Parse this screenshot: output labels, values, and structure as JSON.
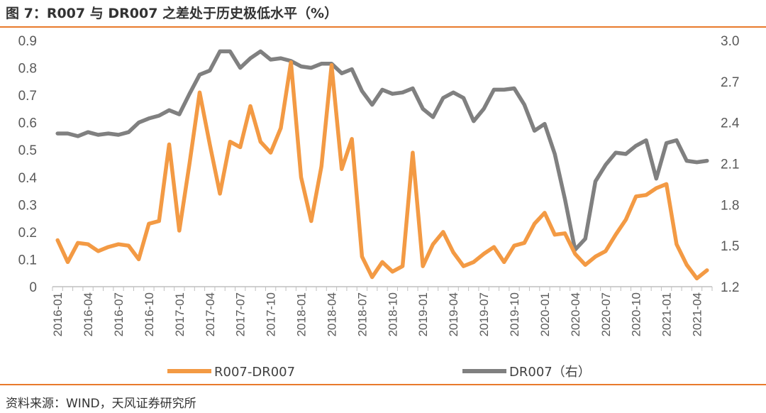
{
  "figure": {
    "title": "图 7：R007 与 DR007 之差处于历史极低水平（%）",
    "source": "资料来源：WIND，天风证券研究所"
  },
  "colors": {
    "r_minus_dr": "#f39a44",
    "dr007": "#808080",
    "rule": "#e87a2c",
    "axis": "#bfbfbf",
    "text": "#595959"
  },
  "chart_data": {
    "type": "line",
    "title": "图 7：R007 与 DR007 之差处于历史极低水平（%）",
    "xlabel": "",
    "ylabel": "",
    "x": [
      "2016-01",
      "2016-02",
      "2016-03",
      "2016-04",
      "2016-05",
      "2016-06",
      "2016-07",
      "2016-08",
      "2016-09",
      "2016-10",
      "2016-11",
      "2016-12",
      "2017-01",
      "2017-02",
      "2017-03",
      "2017-04",
      "2017-05",
      "2017-06",
      "2017-07",
      "2017-08",
      "2017-09",
      "2017-10",
      "2017-11",
      "2017-12",
      "2018-01",
      "2018-02",
      "2018-03",
      "2018-04",
      "2018-05",
      "2018-06",
      "2018-07",
      "2018-08",
      "2018-09",
      "2018-10",
      "2018-11",
      "2018-12",
      "2019-01",
      "2019-02",
      "2019-03",
      "2019-04",
      "2019-05",
      "2019-06",
      "2019-07",
      "2019-08",
      "2019-09",
      "2019-10",
      "2019-11",
      "2019-12",
      "2020-01",
      "2020-02",
      "2020-03",
      "2020-04",
      "2020-05",
      "2020-06",
      "2020-07",
      "2020-08",
      "2020-09",
      "2020-10",
      "2020-11",
      "2020-12",
      "2021-01",
      "2021-02",
      "2021-03",
      "2021-04",
      "2021-05"
    ],
    "x_tick_labels": [
      "2016-01",
      "2016-04",
      "2016-07",
      "2016-10",
      "2017-01",
      "2017-04",
      "2017-07",
      "2017-10",
      "2018-01",
      "2018-04",
      "2018-07",
      "2018-10",
      "2019-01",
      "2019-04",
      "2019-07",
      "2019-10",
      "2020-01",
      "2020-04",
      "2020-07",
      "2020-10",
      "2021-01",
      "2021-04"
    ],
    "left_axis": {
      "ylim": [
        0,
        0.9
      ],
      "ticks": [
        "0",
        "0.1",
        "0.2",
        "0.3",
        "0.4",
        "0.5",
        "0.6",
        "0.7",
        "0.8",
        "0.9"
      ],
      "tick_values": [
        0,
        0.1,
        0.2,
        0.3,
        0.4,
        0.5,
        0.6,
        0.7,
        0.8,
        0.9
      ]
    },
    "right_axis": {
      "ylim": [
        1.2,
        3.0
      ],
      "ticks": [
        "1.2",
        "1.5",
        "1.8",
        "2.1",
        "2.4",
        "2.7",
        "3.0"
      ],
      "tick_values": [
        1.2,
        1.5,
        1.8,
        2.1,
        2.4,
        2.7,
        3.0
      ]
    },
    "series": [
      {
        "name": "R007-DR007",
        "axis": "left",
        "values": [
          0.17,
          0.09,
          0.16,
          0.155,
          0.13,
          0.145,
          0.155,
          0.15,
          0.1,
          0.23,
          0.24,
          0.52,
          0.205,
          0.45,
          0.71,
          0.52,
          0.34,
          0.53,
          0.51,
          0.66,
          0.53,
          0.49,
          0.58,
          0.82,
          0.4,
          0.24,
          0.44,
          0.81,
          0.43,
          0.54,
          0.11,
          0.035,
          0.09,
          0.055,
          0.075,
          0.49,
          0.075,
          0.155,
          0.2,
          0.125,
          0.075,
          0.09,
          0.12,
          0.145,
          0.09,
          0.15,
          0.16,
          0.23,
          0.27,
          0.19,
          0.195,
          0.12,
          0.08,
          0.11,
          0.13,
          0.19,
          0.245,
          0.33,
          0.335,
          0.36,
          0.375,
          0.155,
          0.08,
          0.03,
          0.06
        ]
      },
      {
        "name": "DR007（右）",
        "axis": "right",
        "values": [
          2.32,
          2.32,
          2.3,
          2.33,
          2.31,
          2.32,
          2.31,
          2.33,
          2.4,
          2.43,
          2.45,
          2.49,
          2.46,
          2.61,
          2.75,
          2.78,
          2.92,
          2.92,
          2.8,
          2.87,
          2.92,
          2.86,
          2.87,
          2.85,
          2.81,
          2.8,
          2.83,
          2.83,
          2.76,
          2.79,
          2.63,
          2.53,
          2.64,
          2.61,
          2.62,
          2.65,
          2.5,
          2.44,
          2.58,
          2.62,
          2.58,
          2.41,
          2.5,
          2.64,
          2.64,
          2.65,
          2.53,
          2.34,
          2.39,
          2.17,
          1.84,
          1.47,
          1.55,
          1.97,
          2.09,
          2.18,
          2.17,
          2.23,
          2.27,
          1.99,
          2.25,
          2.27,
          2.12,
          2.11,
          2.12
        ]
      }
    ],
    "legend": {
      "placement": "bottom",
      "entries": [
        "R007-DR007",
        "DR007（右）"
      ]
    },
    "grid": false
  }
}
